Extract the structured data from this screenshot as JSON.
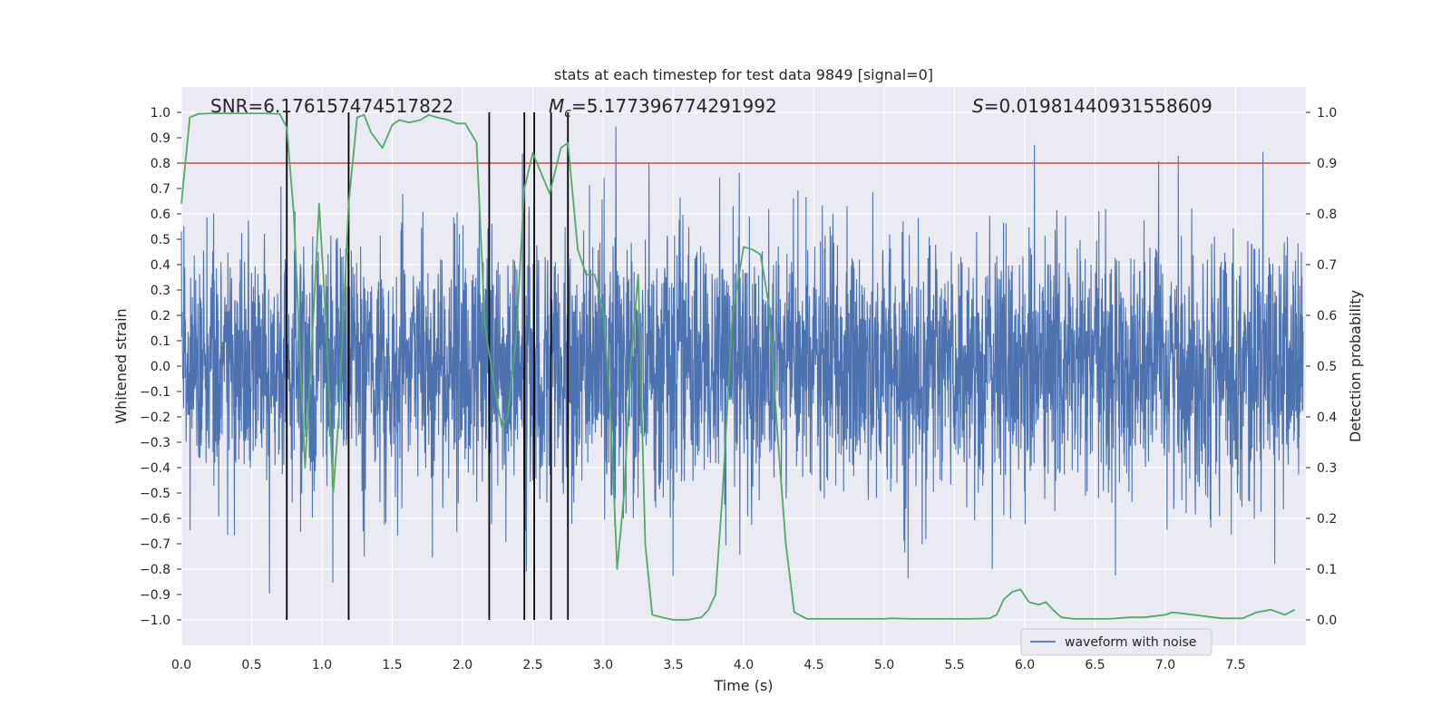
{
  "chart_data": {
    "type": "line",
    "title": "stats at each timestep for test data 9849 [signal=0]",
    "xlabel": "Time (s)",
    "ylabel_left": "Whitened strain",
    "ylabel_right": "Detection probability",
    "xlim": [
      0.0,
      8.0
    ],
    "ylim_left": [
      -1.1,
      1.1
    ],
    "ylim_right": [
      -0.05,
      1.05
    ],
    "x_ticks": [
      "0.0",
      "0.5",
      "1.0",
      "1.5",
      "2.0",
      "2.5",
      "3.0",
      "3.5",
      "4.0",
      "4.5",
      "5.0",
      "5.5",
      "6.0",
      "6.5",
      "7.0",
      "7.5"
    ],
    "y_left_ticks": [
      "1.0",
      "0.9",
      "0.8",
      "0.7",
      "0.6",
      "0.5",
      "0.4",
      "0.3",
      "0.2",
      "0.1",
      "0.0",
      "-0.1",
      "-0.2",
      "-0.3",
      "-0.4",
      "-0.5",
      "-0.6",
      "-0.7",
      "-0.8",
      "-0.9",
      "-1.0"
    ],
    "y_right_ticks": [
      "1.0",
      "0.9",
      "0.8",
      "0.7",
      "0.6",
      "0.5",
      "0.4",
      "0.3",
      "0.2",
      "0.1",
      "0.0"
    ],
    "grid": true,
    "legend_position": "bottom-right",
    "annotations": {
      "snr": "SNR=6.176157474517822",
      "mc_symbol": "M",
      "mc_sub": "c",
      "mc_value": "=5.177396774291992",
      "s_symbol": "S",
      "s_value": "=0.01981440931558609"
    },
    "threshold": {
      "value": 0.9,
      "axis": "right",
      "color": "#c44e52"
    },
    "vertical_lines": [
      0.75,
      1.19,
      2.19,
      2.44,
      2.51,
      2.63,
      2.75
    ],
    "series": [
      {
        "name": "waveform with noise",
        "axis": "left",
        "color": "#4c72b0",
        "kind": "noise",
        "amplitude_typical": 0.4,
        "amplitude_max": 1.0
      },
      {
        "axis": "right",
        "color": "#55a868",
        "x": [
          0.0,
          0.06,
          0.12,
          0.2,
          0.3,
          0.4,
          0.5,
          0.6,
          0.7,
          0.75,
          0.8,
          0.88,
          0.93,
          0.98,
          1.03,
          1.08,
          1.12,
          1.19,
          1.25,
          1.3,
          1.35,
          1.43,
          1.5,
          1.55,
          1.62,
          1.7,
          1.76,
          1.82,
          1.9,
          1.96,
          2.02,
          2.1,
          2.16,
          2.22,
          2.28,
          2.32,
          2.38,
          2.44,
          2.5,
          2.56,
          2.62,
          2.7,
          2.75,
          2.82,
          2.88,
          2.94,
          3.0,
          3.05,
          3.1,
          3.15,
          3.2,
          3.25,
          3.3,
          3.35,
          3.42,
          3.5,
          3.6,
          3.7,
          3.75,
          3.8,
          3.85,
          3.92,
          4.0,
          4.06,
          4.12,
          4.18,
          4.24,
          4.3,
          4.36,
          4.45,
          4.6,
          4.8,
          5.0,
          5.05,
          5.2,
          5.4,
          5.6,
          5.75,
          5.8,
          5.85,
          5.91,
          5.97,
          6.03,
          6.1,
          6.15,
          6.2,
          6.26,
          6.35,
          6.5,
          6.6,
          6.75,
          6.85,
          7.0,
          7.05,
          7.2,
          7.4,
          7.55,
          7.65,
          7.75,
          7.85,
          7.92
        ],
        "y": [
          0.82,
          0.99,
          0.997,
          0.998,
          0.998,
          0.998,
          0.998,
          0.998,
          0.997,
          0.97,
          0.8,
          0.3,
          0.55,
          0.82,
          0.58,
          0.25,
          0.4,
          0.82,
          0.99,
          0.995,
          0.96,
          0.93,
          0.975,
          0.985,
          0.98,
          0.985,
          0.995,
          0.99,
          0.985,
          0.978,
          0.978,
          0.94,
          0.58,
          0.47,
          0.38,
          0.4,
          0.55,
          0.85,
          0.92,
          0.88,
          0.84,
          0.93,
          0.94,
          0.73,
          0.68,
          0.68,
          0.61,
          0.43,
          0.1,
          0.25,
          0.52,
          0.68,
          0.15,
          0.01,
          0.005,
          0.0,
          0.0,
          0.005,
          0.02,
          0.05,
          0.25,
          0.6,
          0.735,
          0.73,
          0.72,
          0.62,
          0.37,
          0.15,
          0.015,
          0.002,
          0.002,
          0.002,
          0.002,
          0.003,
          0.002,
          0.002,
          0.002,
          0.003,
          0.01,
          0.04,
          0.055,
          0.06,
          0.035,
          0.03,
          0.035,
          0.02,
          0.005,
          0.002,
          0.002,
          0.002,
          0.005,
          0.005,
          0.01,
          0.015,
          0.01,
          0.003,
          0.003,
          0.015,
          0.02,
          0.01,
          0.02
        ]
      }
    ]
  }
}
